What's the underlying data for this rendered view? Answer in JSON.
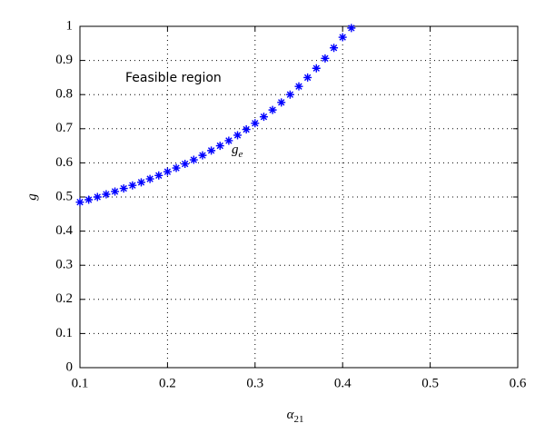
{
  "chart_data": {
    "type": "scatter",
    "marker": "asterisk",
    "xlabel": "α",
    "xlabel_subscript": "21",
    "ylabel": "g",
    "annotations": [
      {
        "text": "Feasible region"
      },
      {
        "text": "g",
        "subscript": "e"
      }
    ],
    "series": [
      {
        "color": "#0000ff",
        "x": [
          0.1,
          0.11,
          0.12,
          0.13,
          0.14,
          0.15,
          0.16,
          0.17,
          0.18,
          0.19,
          0.2,
          0.21,
          0.22,
          0.23,
          0.24,
          0.25,
          0.26,
          0.27,
          0.28,
          0.29,
          0.3,
          0.31,
          0.32,
          0.33,
          0.34,
          0.35,
          0.36,
          0.37,
          0.38,
          0.39,
          0.4,
          0.41
        ],
        "values": [
          0.485,
          0.492,
          0.5,
          0.508,
          0.516,
          0.525,
          0.534,
          0.543,
          0.553,
          0.563,
          0.574,
          0.585,
          0.597,
          0.609,
          0.622,
          0.636,
          0.65,
          0.665,
          0.681,
          0.698,
          0.716,
          0.735,
          0.755,
          0.777,
          0.8,
          0.824,
          0.85,
          0.877,
          0.906,
          0.937,
          0.968,
          0.995
        ]
      }
    ],
    "xlim": [
      0.1,
      0.6
    ],
    "xticks": [
      0.1,
      0.2,
      0.3,
      0.4,
      0.5,
      0.6
    ],
    "ylim": [
      0,
      1
    ],
    "yticks": [
      0,
      0.1,
      0.2,
      0.3,
      0.4,
      0.5,
      0.6,
      0.7,
      0.8,
      0.9,
      1
    ],
    "grid": true
  }
}
